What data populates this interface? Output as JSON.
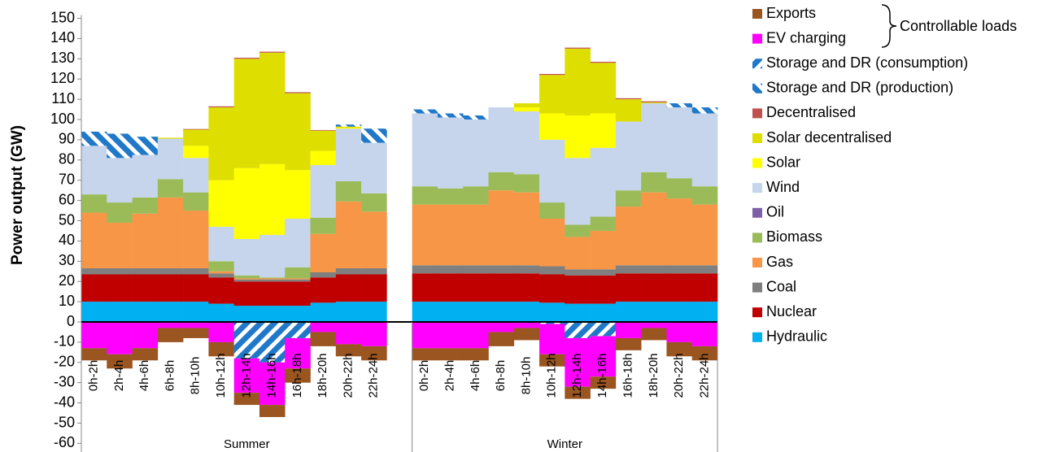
{
  "chart_data": {
    "type": "bar",
    "stacked": true,
    "y_label": "Power output (GW)",
    "annotation": "Controllable loads",
    "group_labels": [
      "Summer",
      "Winter"
    ],
    "categories": [
      "0h-2h",
      "2h-4h",
      "4h-6h",
      "6h-8h",
      "8h-10h",
      "10h-12h",
      "12h-14h",
      "14h-16h",
      "16h-18h",
      "18h-20h",
      "20h-22h",
      "22h-24h",
      null,
      "0h-2h",
      "2h-4h",
      "4h-6h",
      "6h-8h",
      "8h-10h",
      "10h-12h",
      "12h-14h",
      "14h-16h",
      "16h-18h",
      "18h-20h",
      "20h-22h",
      "22h-24h"
    ],
    "ylim": [
      -60,
      150
    ],
    "yticks": [
      -60,
      -50,
      -40,
      -30,
      -20,
      -10,
      0,
      10,
      20,
      30,
      40,
      50,
      60,
      70,
      80,
      90,
      100,
      110,
      120,
      130,
      140,
      150
    ],
    "series": [
      {
        "name": "Exports",
        "color": "#9a5520",
        "values": [
          -6,
          -7,
          -6,
          -7,
          -5,
          -7,
          -6,
          -6,
          -7,
          -7,
          -6,
          -7,
          null,
          -6,
          -6,
          -6,
          -7,
          -6,
          -6,
          -6,
          -6,
          -6,
          -6,
          -7,
          -7
        ]
      },
      {
        "name": "EV charging",
        "color": "#ff00ff",
        "values": [
          -13,
          -16,
          -13,
          -3,
          -3,
          -10,
          -17,
          -21,
          -15,
          -5,
          -11,
          -12,
          null,
          -13,
          -13,
          -13,
          -5,
          -3,
          -15,
          -24,
          -20,
          -8,
          -3,
          -10,
          -12
        ]
      },
      {
        "name": "Storage and DR (consumption)",
        "color": "#1f78c8",
        "hatch": "/",
        "values": [
          0,
          0,
          0,
          0,
          0,
          0,
          -18,
          -20,
          -8,
          0,
          0,
          0,
          null,
          0,
          0,
          0,
          0,
          0,
          -1,
          -8,
          -7,
          0,
          0,
          0,
          0
        ]
      },
      {
        "name": "Storage and DR (production)",
        "color": "#1f78c8",
        "hatch": "\\",
        "values": [
          7,
          12,
          9,
          0,
          0,
          0,
          0,
          0,
          0,
          0,
          1,
          7,
          null,
          2,
          2,
          2,
          0,
          0,
          0,
          0,
          0,
          0,
          0,
          2,
          3
        ]
      },
      {
        "name": "Decentralised",
        "color": "#c0504d",
        "values": [
          0,
          0,
          0,
          0,
          0.3,
          0.5,
          0.5,
          0.5,
          0.5,
          0.3,
          0,
          0,
          null,
          0,
          0,
          0,
          0,
          0,
          0.5,
          0.5,
          0.5,
          0.5,
          0.5,
          0,
          0
        ]
      },
      {
        "name": "Solar decentralised",
        "color": "#dede00",
        "values": [
          0,
          0,
          0,
          0.5,
          8,
          36,
          54,
          55,
          38,
          10,
          0.5,
          0,
          null,
          0,
          0,
          0,
          0,
          2,
          19,
          33,
          25,
          11,
          0.5,
          0,
          0
        ]
      },
      {
        "name": "Solar",
        "color": "#ffff00",
        "values": [
          0,
          0,
          0,
          0,
          6,
          23,
          35,
          35,
          24,
          7,
          0.5,
          0,
          null,
          0,
          0,
          0,
          0,
          2,
          13,
          21,
          17,
          0,
          0,
          0,
          0
        ]
      },
      {
        "name": "Wind",
        "color": "#c6d5ec",
        "values": [
          24,
          22,
          21,
          20,
          17,
          17,
          18,
          21,
          24,
          26,
          26,
          25,
          null,
          36,
          35,
          33,
          32,
          31,
          31,
          33,
          34,
          34,
          34,
          35,
          36
        ]
      },
      {
        "name": "Oil",
        "color": "#7f60a8",
        "values": [
          0,
          0,
          0,
          0,
          0,
          0,
          0,
          0,
          0,
          0,
          0,
          0,
          null,
          0,
          0,
          0,
          0,
          0,
          0,
          0,
          0,
          0,
          0,
          0,
          0
        ]
      },
      {
        "name": "Biomass",
        "color": "#9bbb59",
        "values": [
          9,
          10,
          8,
          9,
          9,
          5,
          1.5,
          0.5,
          5.5,
          8,
          10,
          9,
          null,
          9,
          8,
          9,
          9,
          9,
          8,
          6,
          7,
          8,
          10,
          10,
          9
        ]
      },
      {
        "name": "Gas",
        "color": "#f79646",
        "values": [
          27.5,
          22.5,
          27,
          35,
          28.5,
          1,
          0.5,
          0.5,
          0.5,
          19,
          33,
          28,
          null,
          30,
          30,
          30,
          37,
          36,
          23.5,
          16,
          19,
          29,
          36,
          33,
          30
        ]
      },
      {
        "name": "Coal",
        "color": "#7f7f7f",
        "values": [
          3,
          3,
          3,
          3,
          3,
          2,
          1,
          1,
          1,
          2.5,
          3,
          3,
          null,
          4,
          4,
          4,
          4,
          4,
          4,
          3,
          3,
          4,
          4,
          4,
          4
        ]
      },
      {
        "name": "Nuclear",
        "color": "#c00000",
        "values": [
          13.5,
          13.5,
          13.5,
          13.5,
          13.5,
          13,
          12,
          12,
          12,
          12.5,
          13.5,
          13.5,
          null,
          14,
          14,
          14,
          14,
          14,
          14,
          14,
          14,
          14,
          14,
          14,
          14
        ]
      },
      {
        "name": "Hydraulic",
        "color": "#00b0f0",
        "values": [
          10,
          10,
          10,
          10,
          10,
          9,
          8,
          8,
          8,
          9.5,
          10,
          10,
          null,
          10,
          10,
          10,
          10,
          10,
          9.5,
          9,
          9,
          10,
          10,
          10,
          10
        ]
      }
    ]
  }
}
